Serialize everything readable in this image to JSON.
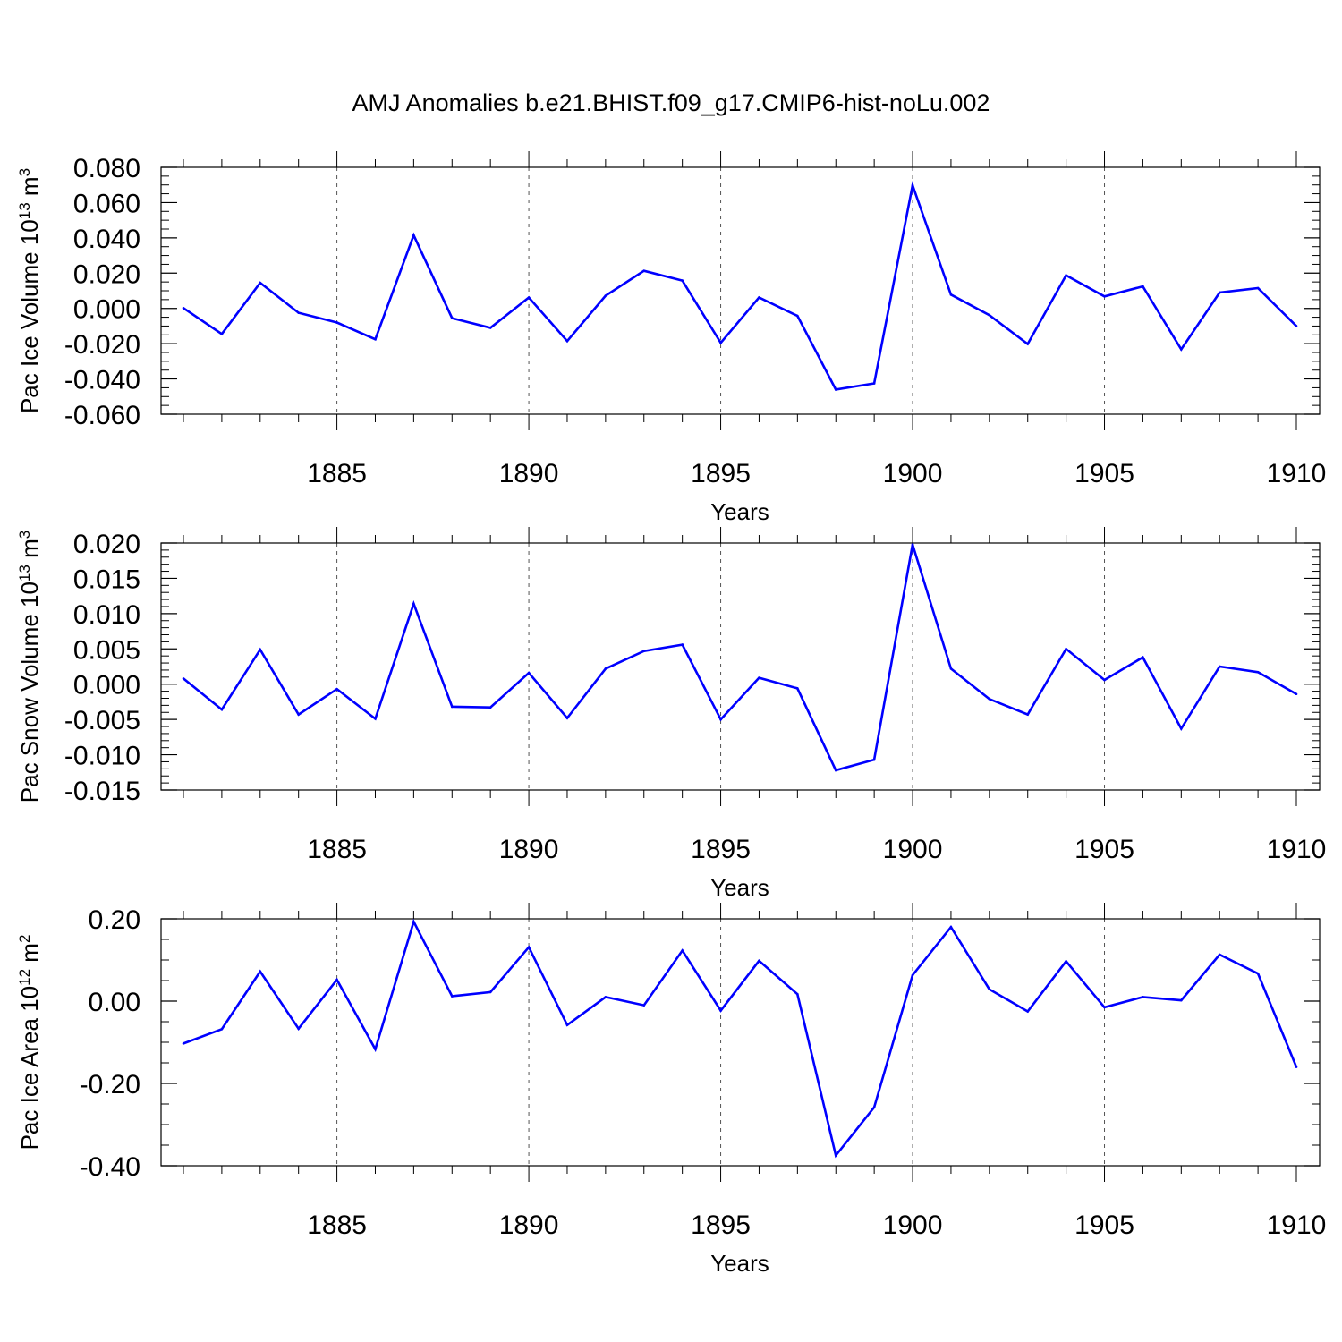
{
  "title": "AMJ Anomalies b.e21.BHIST.f09_g17.CMIP6-hist-noLu.002",
  "colors": {
    "line": "#0000ff",
    "axis": "#000000",
    "grid": "#555555"
  },
  "chart_data": [
    {
      "type": "line",
      "ylabel": "Pac Ice Volume 10",
      "ylabel_exp": "13",
      "ylabel_unit": " m",
      "ylabel_unit_exp": "3",
      "xlabel": "Years",
      "xlim": [
        1881,
        1910
      ],
      "ylim": [
        -0.06,
        0.08
      ],
      "y_ticks": [
        -0.06,
        -0.04,
        -0.02,
        0.0,
        0.02,
        0.04,
        0.06,
        0.08
      ],
      "y_tick_labels": [
        "-0.060",
        "-0.040",
        "-0.020",
        "0.000",
        "0.020",
        "0.040",
        "0.060",
        "0.080"
      ],
      "y_minor_step": 0.005,
      "x_ticks": [
        1885,
        1890,
        1895,
        1900,
        1905,
        1910
      ],
      "x_tick_labels": [
        "1885",
        "1890",
        "1895",
        "1900",
        "1905",
        "1910"
      ],
      "grid": "dashed vertical at major x ticks",
      "x": [
        1881,
        1882,
        1883,
        1884,
        1885,
        1886,
        1887,
        1888,
        1889,
        1890,
        1891,
        1892,
        1893,
        1894,
        1895,
        1896,
        1897,
        1898,
        1899,
        1900,
        1901,
        1902,
        1903,
        1904,
        1905,
        1906,
        1907,
        1908,
        1909,
        1910
      ],
      "values": [
        0.0002,
        -0.0145,
        0.0145,
        -0.0025,
        -0.008,
        -0.0175,
        0.0415,
        -0.0055,
        -0.011,
        0.0062,
        -0.0185,
        0.0072,
        0.0213,
        0.0158,
        -0.0195,
        0.0062,
        -0.0042,
        -0.046,
        -0.0425,
        0.0698,
        0.0078,
        -0.0038,
        -0.0202,
        0.0188,
        0.0068,
        0.0125,
        -0.0232,
        0.009,
        0.0115,
        -0.01
      ]
    },
    {
      "type": "line",
      "ylabel": "Pac Snow Volume 10",
      "ylabel_exp": "13",
      "ylabel_unit": " m",
      "ylabel_unit_exp": "3",
      "xlabel": "Years",
      "xlim": [
        1881,
        1910
      ],
      "ylim": [
        -0.015,
        0.02
      ],
      "y_ticks": [
        -0.015,
        -0.01,
        -0.005,
        0.0,
        0.005,
        0.01,
        0.015,
        0.02
      ],
      "y_tick_labels": [
        "-0.015",
        "-0.010",
        "-0.005",
        "0.000",
        "0.005",
        "0.010",
        "0.015",
        "0.020"
      ],
      "y_minor_step": 0.001,
      "x_ticks": [
        1885,
        1890,
        1895,
        1900,
        1905,
        1910
      ],
      "x_tick_labels": [
        "1885",
        "1890",
        "1895",
        "1900",
        "1905",
        "1910"
      ],
      "grid": "dashed vertical at major x ticks",
      "x": [
        1881,
        1882,
        1883,
        1884,
        1885,
        1886,
        1887,
        1888,
        1889,
        1890,
        1891,
        1892,
        1893,
        1894,
        1895,
        1896,
        1897,
        1898,
        1899,
        1900,
        1901,
        1902,
        1903,
        1904,
        1905,
        1906,
        1907,
        1908,
        1909,
        1910
      ],
      "values": [
        0.0008,
        -0.0036,
        0.0049,
        -0.0043,
        -0.0007,
        -0.0049,
        0.0114,
        -0.0032,
        -0.0033,
        0.0016,
        -0.0048,
        0.0022,
        0.0047,
        0.0056,
        -0.005,
        0.0009,
        -0.0006,
        -0.0122,
        -0.0107,
        0.0198,
        0.0022,
        -0.0021,
        -0.0043,
        0.005,
        0.0006,
        0.0038,
        -0.0063,
        0.0025,
        0.0017,
        -0.0014
      ]
    },
    {
      "type": "line",
      "ylabel": "Pac Ice Area 10",
      "ylabel_exp": "12",
      "ylabel_unit": " m",
      "ylabel_unit_exp": "2",
      "xlabel": "Years",
      "xlim": [
        1881,
        1910
      ],
      "ylim": [
        -0.4,
        0.2
      ],
      "y_ticks": [
        -0.4,
        -0.2,
        0.0,
        0.2
      ],
      "y_tick_labels": [
        "-0.40",
        "-0.20",
        "0.00",
        "0.20"
      ],
      "y_minor_step": 0.05,
      "x_ticks": [
        1885,
        1890,
        1895,
        1900,
        1905,
        1910
      ],
      "x_tick_labels": [
        "1885",
        "1890",
        "1895",
        "1900",
        "1905",
        "1910"
      ],
      "grid": "dashed vertical at major x ticks",
      "x": [
        1881,
        1882,
        1883,
        1884,
        1885,
        1886,
        1887,
        1888,
        1889,
        1890,
        1891,
        1892,
        1893,
        1894,
        1895,
        1896,
        1897,
        1898,
        1899,
        1900,
        1901,
        1902,
        1903,
        1904,
        1905,
        1906,
        1907,
        1908,
        1909,
        1910
      ],
      "values": [
        -0.103,
        -0.068,
        0.072,
        -0.067,
        0.052,
        -0.117,
        0.193,
        0.012,
        0.022,
        0.131,
        -0.058,
        0.01,
        -0.01,
        0.123,
        -0.023,
        0.098,
        0.017,
        -0.375,
        -0.258,
        0.063,
        0.18,
        0.029,
        -0.025,
        0.097,
        -0.015,
        0.01,
        0.002,
        0.113,
        0.067,
        -0.16
      ]
    }
  ]
}
